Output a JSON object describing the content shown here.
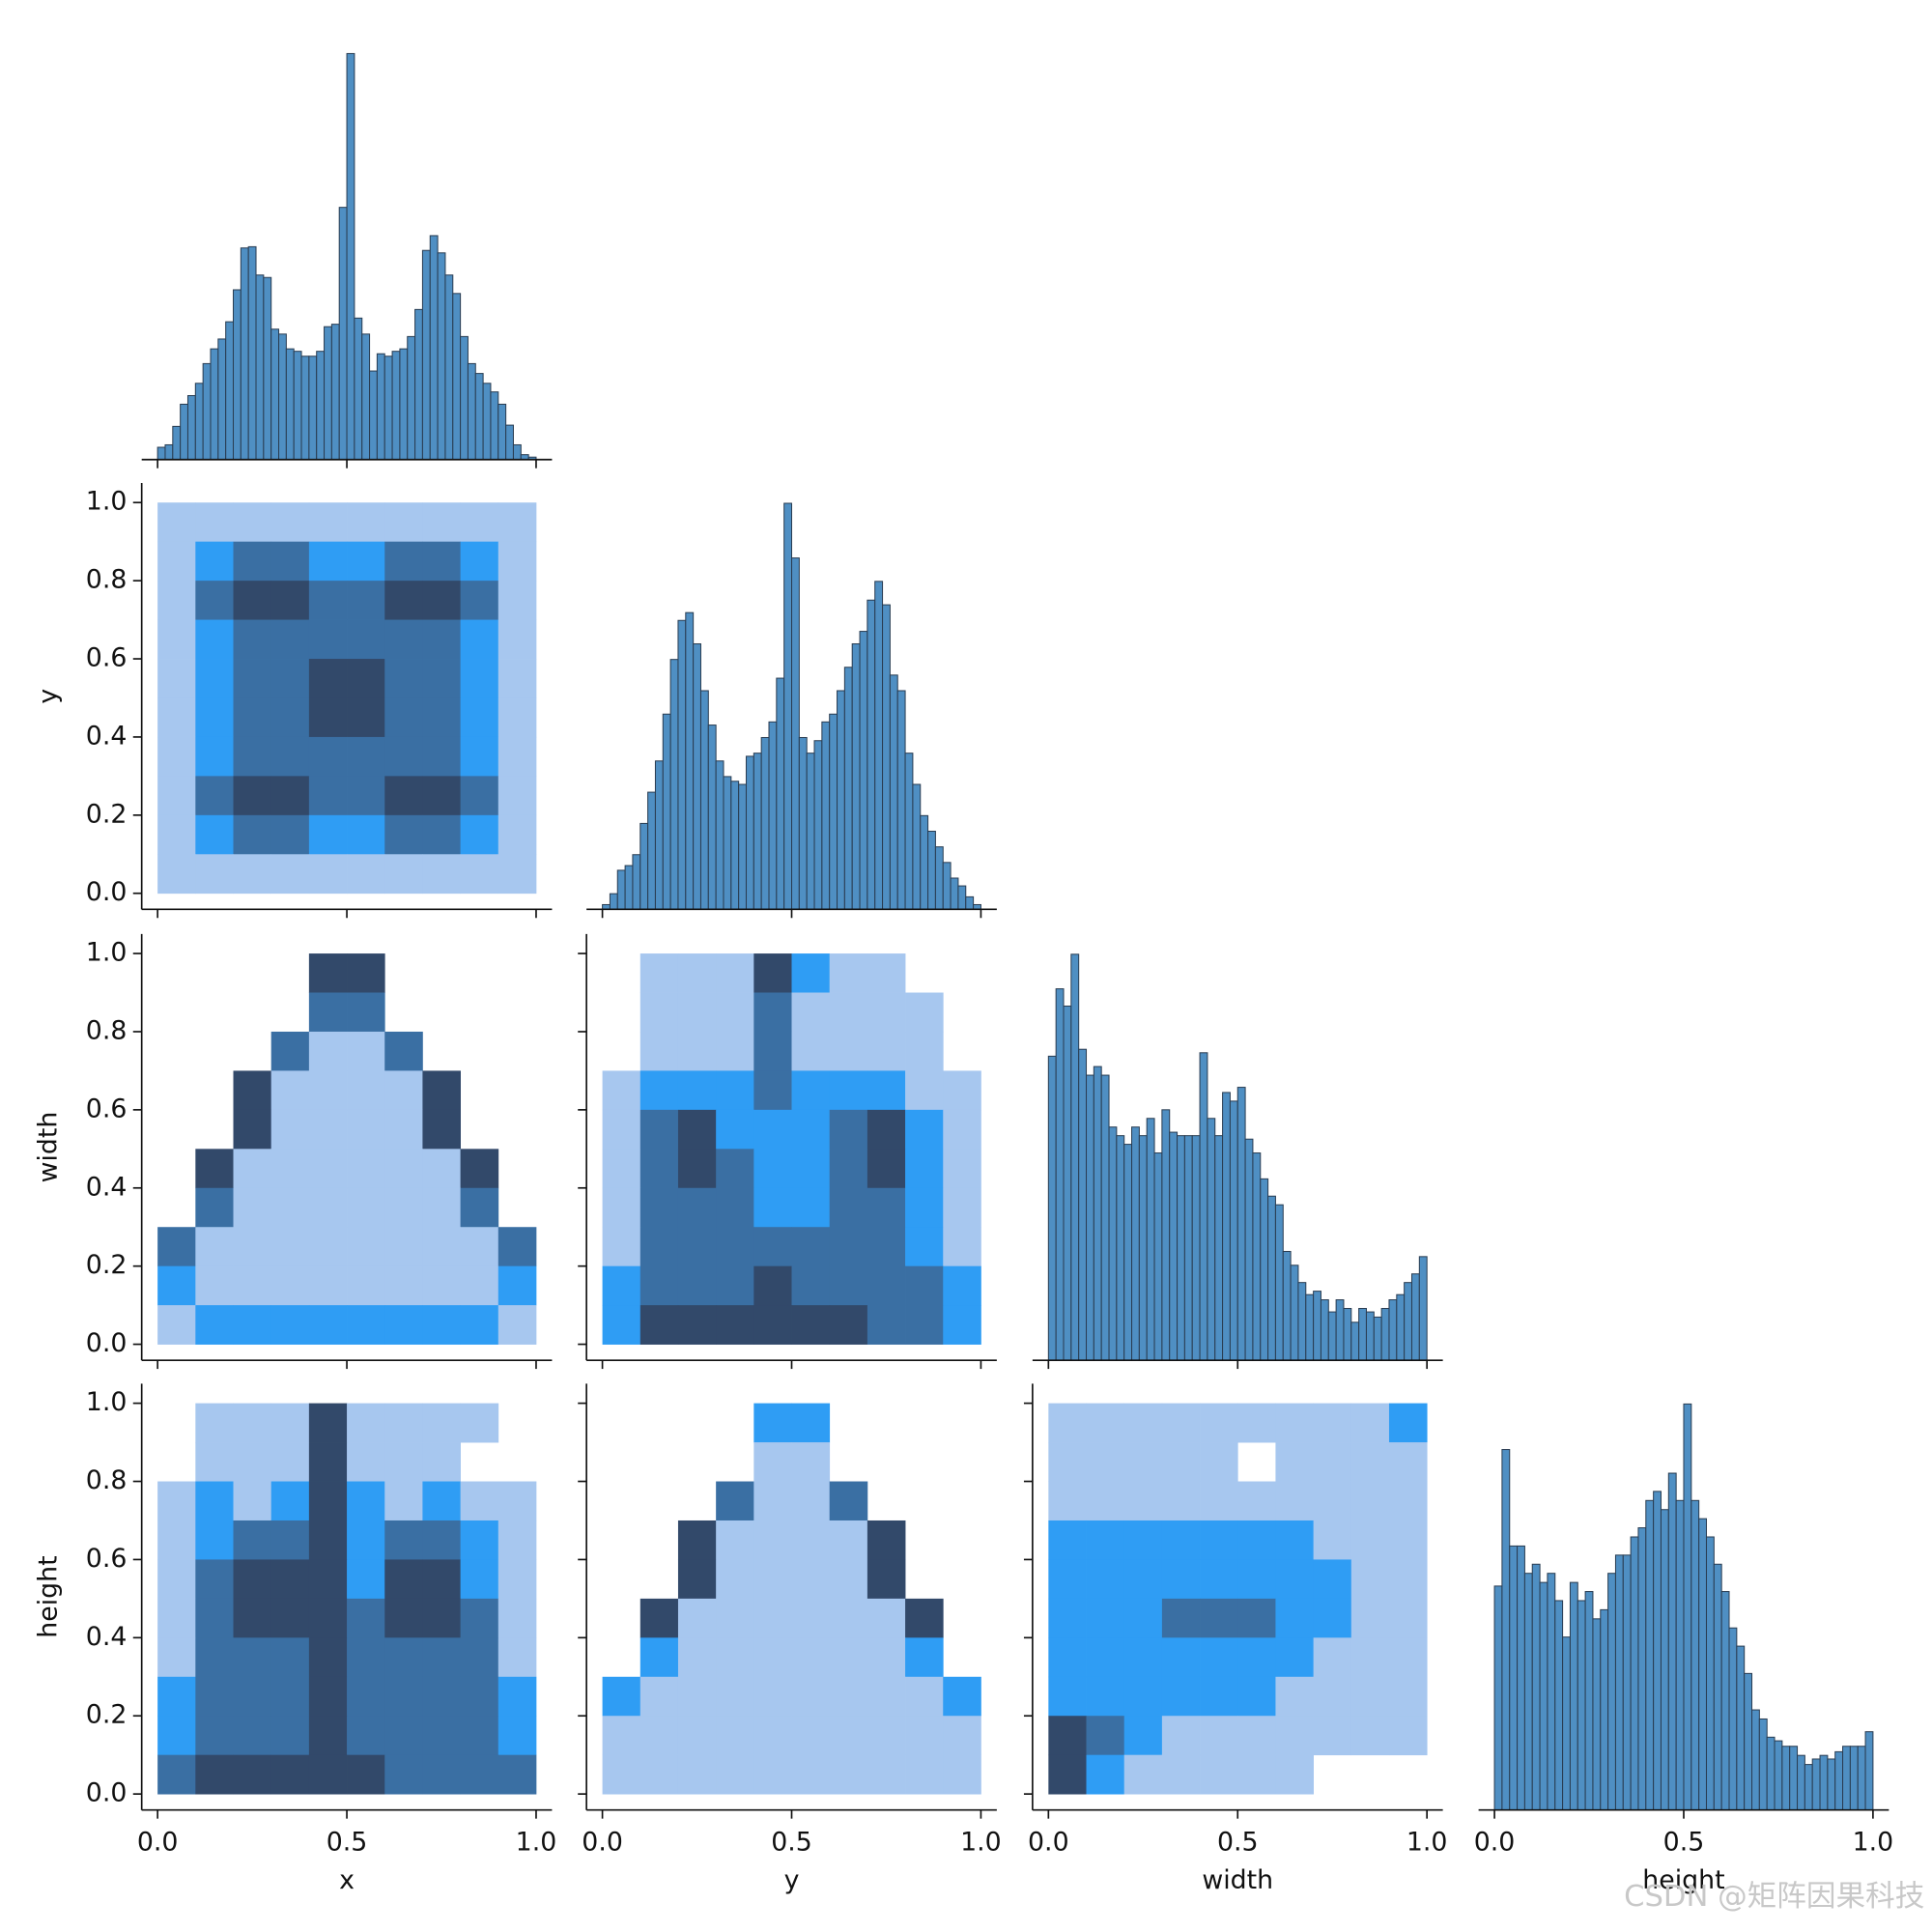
{
  "chart_data": {
    "type": "pairplot",
    "variables": [
      "x",
      "y",
      "width",
      "height"
    ],
    "xlim": [
      -0.042,
      1.042
    ],
    "ylim": [
      -0.041,
      1.05
    ],
    "xticks": [
      {
        "value": 0,
        "label": "0.0"
      },
      0.5,
      {
        "value": 1,
        "label": "1.0"
      }
    ],
    "yticks": [
      {
        "value": 0,
        "label": "0.0"
      },
      0.2,
      0.4,
      0.6,
      0.8,
      {
        "value": 1,
        "label": "1.0"
      }
    ],
    "bins": [
      0,
      0.02,
      0.04,
      0.06,
      0.08,
      0.1,
      0.12,
      0.14,
      0.16,
      0.18,
      0.2,
      0.22,
      0.24,
      0.26,
      0.28,
      0.3,
      0.32,
      0.34,
      0.36,
      0.38,
      0.4,
      0.42,
      0.44,
      0.46,
      0.48,
      0.5,
      0.52,
      0.54,
      0.56,
      0.58,
      0.6,
      0.62,
      0.64,
      0.66,
      0.68,
      0.7,
      0.72,
      0.74,
      0.76,
      0.78,
      0.8,
      0.82,
      0.84,
      0.86,
      0.88,
      0.9,
      0.92,
      0.94,
      0.96,
      0.98,
      1
    ],
    "bar_color": "#4f8fc3",
    "cmap": [
      "#a7c7ef",
      "#2f9df4",
      "#3a6fa3",
      "#32496a"
    ],
    "diagonal": [
      {
        "counts": [
          10,
          12,
          27,
          45,
          52,
          62,
          78,
          90,
          98,
          112,
          138,
          172,
          173,
          150,
          148,
          106,
          102,
          90,
          88,
          84,
          84,
          88,
          108,
          110,
          205,
          330,
          115,
          102,
          72,
          86,
          84,
          88,
          90,
          100,
          122,
          170,
          182,
          168,
          150,
          135,
          100,
          78,
          70,
          62,
          55,
          45,
          28,
          12,
          4,
          2
        ]
      },
      {
        "counts": [
          3,
          10,
          25,
          28,
          35,
          55,
          75,
          95,
          125,
          160,
          185,
          190,
          170,
          140,
          118,
          95,
          85,
          82,
          80,
          98,
          100,
          110,
          120,
          148,
          260,
          225,
          110,
          100,
          108,
          120,
          125,
          140,
          155,
          170,
          178,
          198,
          210,
          195,
          150,
          140,
          100,
          80,
          60,
          50,
          40,
          30,
          20,
          15,
          8,
          3
        ]
      },
      {
        "counts": [
          176,
          215,
          205,
          235,
          180,
          165,
          170,
          165,
          135,
          130,
          125,
          135,
          130,
          140,
          120,
          145,
          132,
          130,
          130,
          130,
          178,
          140,
          130,
          155,
          150,
          158,
          128,
          120,
          105,
          95,
          90,
          63,
          55,
          45,
          38,
          40,
          35,
          28,
          35,
          30,
          22,
          30,
          28,
          25,
          30,
          35,
          38,
          45,
          50,
          60
        ]
      },
      {
        "counts": [
          123,
          198,
          145,
          145,
          130,
          135,
          125,
          130,
          115,
          95,
          125,
          115,
          120,
          105,
          110,
          130,
          140,
          140,
          150,
          155,
          170,
          175,
          165,
          185,
          170,
          223,
          170,
          160,
          150,
          135,
          120,
          100,
          90,
          75,
          55,
          50,
          40,
          38,
          35,
          35,
          30,
          25,
          28,
          30,
          28,
          32,
          35,
          35,
          35,
          43
        ]
      }
    ],
    "panels": [
      {
        "cells": [
          [
            1,
            1,
            1,
            1,
            1,
            1,
            1,
            1,
            1,
            1
          ],
          [
            1,
            2,
            3,
            3,
            2,
            2,
            3,
            3,
            2,
            1
          ],
          [
            1,
            3,
            4,
            4,
            3,
            3,
            4,
            4,
            3,
            1
          ],
          [
            1,
            2,
            3,
            3,
            3,
            3,
            3,
            3,
            2,
            1
          ],
          [
            1,
            2,
            3,
            3,
            4,
            4,
            3,
            3,
            2,
            1
          ],
          [
            1,
            2,
            3,
            3,
            4,
            4,
            3,
            3,
            2,
            1
          ],
          [
            1,
            2,
            3,
            3,
            3,
            3,
            3,
            3,
            2,
            1
          ],
          [
            1,
            3,
            4,
            4,
            3,
            3,
            4,
            4,
            3,
            1
          ],
          [
            1,
            2,
            3,
            3,
            2,
            2,
            3,
            3,
            2,
            1
          ],
          [
            1,
            1,
            1,
            1,
            1,
            1,
            1,
            1,
            1,
            1
          ]
        ]
      },
      {
        "cells": [
          [
            0,
            0,
            0,
            0,
            4,
            4,
            0,
            0,
            0,
            0
          ],
          [
            0,
            0,
            0,
            0,
            3,
            3,
            0,
            0,
            0,
            0
          ],
          [
            0,
            0,
            0,
            3,
            1,
            1,
            3,
            0,
            0,
            0
          ],
          [
            0,
            0,
            4,
            1,
            1,
            1,
            1,
            4,
            0,
            0
          ],
          [
            0,
            0,
            4,
            1,
            1,
            1,
            1,
            4,
            0,
            0
          ],
          [
            0,
            4,
            1,
            1,
            1,
            1,
            1,
            1,
            4,
            0
          ],
          [
            0,
            3,
            1,
            1,
            1,
            1,
            1,
            1,
            3,
            0
          ],
          [
            3,
            1,
            1,
            1,
            1,
            1,
            1,
            1,
            1,
            3
          ],
          [
            2,
            1,
            1,
            1,
            1,
            1,
            1,
            1,
            1,
            2
          ],
          [
            1,
            2,
            2,
            2,
            2,
            2,
            2,
            2,
            2,
            1
          ]
        ]
      },
      {
        "cells": [
          [
            0,
            1,
            1,
            1,
            4,
            2,
            1,
            1,
            0,
            0
          ],
          [
            0,
            1,
            1,
            1,
            3,
            1,
            1,
            1,
            1,
            0
          ],
          [
            0,
            1,
            1,
            1,
            3,
            1,
            1,
            1,
            1,
            0
          ],
          [
            1,
            2,
            2,
            2,
            3,
            2,
            2,
            2,
            1,
            1
          ],
          [
            1,
            3,
            4,
            2,
            2,
            2,
            3,
            4,
            2,
            1
          ],
          [
            1,
            3,
            4,
            3,
            2,
            2,
            3,
            4,
            2,
            1
          ],
          [
            1,
            3,
            3,
            3,
            2,
            2,
            3,
            3,
            2,
            1
          ],
          [
            1,
            3,
            3,
            3,
            3,
            3,
            3,
            3,
            2,
            1
          ],
          [
            2,
            3,
            3,
            3,
            4,
            3,
            3,
            3,
            3,
            2
          ],
          [
            2,
            4,
            4,
            4,
            4,
            4,
            4,
            3,
            3,
            2
          ]
        ]
      },
      {
        "cells": [
          [
            0,
            1,
            1,
            1,
            4,
            1,
            1,
            1,
            1,
            0
          ],
          [
            0,
            1,
            1,
            1,
            4,
            1,
            1,
            1,
            0,
            0
          ],
          [
            1,
            2,
            1,
            2,
            4,
            2,
            1,
            2,
            1,
            1
          ],
          [
            1,
            2,
            3,
            3,
            4,
            2,
            3,
            3,
            2,
            1
          ],
          [
            1,
            3,
            4,
            4,
            4,
            2,
            4,
            4,
            2,
            1
          ],
          [
            1,
            3,
            4,
            4,
            4,
            3,
            4,
            4,
            3,
            1
          ],
          [
            1,
            3,
            3,
            3,
            4,
            3,
            3,
            3,
            3,
            1
          ],
          [
            2,
            3,
            3,
            3,
            4,
            3,
            3,
            3,
            3,
            2
          ],
          [
            2,
            3,
            3,
            3,
            4,
            3,
            3,
            3,
            3,
            2
          ],
          [
            3,
            4,
            4,
            4,
            4,
            4,
            3,
            3,
            3,
            3
          ]
        ]
      },
      {
        "cells": [
          [
            0,
            0,
            0,
            0,
            2,
            2,
            0,
            0,
            0,
            0
          ],
          [
            0,
            0,
            0,
            0,
            1,
            1,
            0,
            0,
            0,
            0
          ],
          [
            0,
            0,
            0,
            3,
            1,
            1,
            3,
            0,
            0,
            0
          ],
          [
            0,
            0,
            4,
            1,
            1,
            1,
            1,
            4,
            0,
            0
          ],
          [
            0,
            0,
            4,
            1,
            1,
            1,
            1,
            4,
            0,
            0
          ],
          [
            0,
            4,
            1,
            1,
            1,
            1,
            1,
            1,
            4,
            0
          ],
          [
            0,
            2,
            1,
            1,
            1,
            1,
            1,
            1,
            2,
            0
          ],
          [
            2,
            1,
            1,
            1,
            1,
            1,
            1,
            1,
            1,
            2
          ],
          [
            1,
            1,
            1,
            1,
            1,
            1,
            1,
            1,
            1,
            1
          ],
          [
            1,
            1,
            1,
            1,
            1,
            1,
            1,
            1,
            1,
            1
          ]
        ]
      },
      {
        "cells": [
          [
            1,
            1,
            1,
            1,
            1,
            1,
            1,
            1,
            1,
            2
          ],
          [
            1,
            1,
            1,
            1,
            1,
            0,
            1,
            1,
            1,
            1
          ],
          [
            1,
            1,
            1,
            1,
            1,
            1,
            1,
            1,
            1,
            1
          ],
          [
            2,
            2,
            2,
            2,
            2,
            2,
            2,
            1,
            1,
            1
          ],
          [
            2,
            2,
            2,
            2,
            2,
            2,
            2,
            2,
            1,
            1
          ],
          [
            2,
            2,
            2,
            3,
            3,
            3,
            2,
            2,
            1,
            1
          ],
          [
            2,
            2,
            2,
            2,
            2,
            2,
            2,
            1,
            1,
            1
          ],
          [
            2,
            2,
            2,
            2,
            2,
            2,
            1,
            1,
            1,
            1
          ],
          [
            4,
            3,
            2,
            1,
            1,
            1,
            1,
            1,
            1,
            1
          ],
          [
            4,
            2,
            1,
            1,
            1,
            1,
            1,
            0,
            0,
            0
          ]
        ]
      }
    ],
    "watermark": "CSDN @矩阵因果科技"
  }
}
